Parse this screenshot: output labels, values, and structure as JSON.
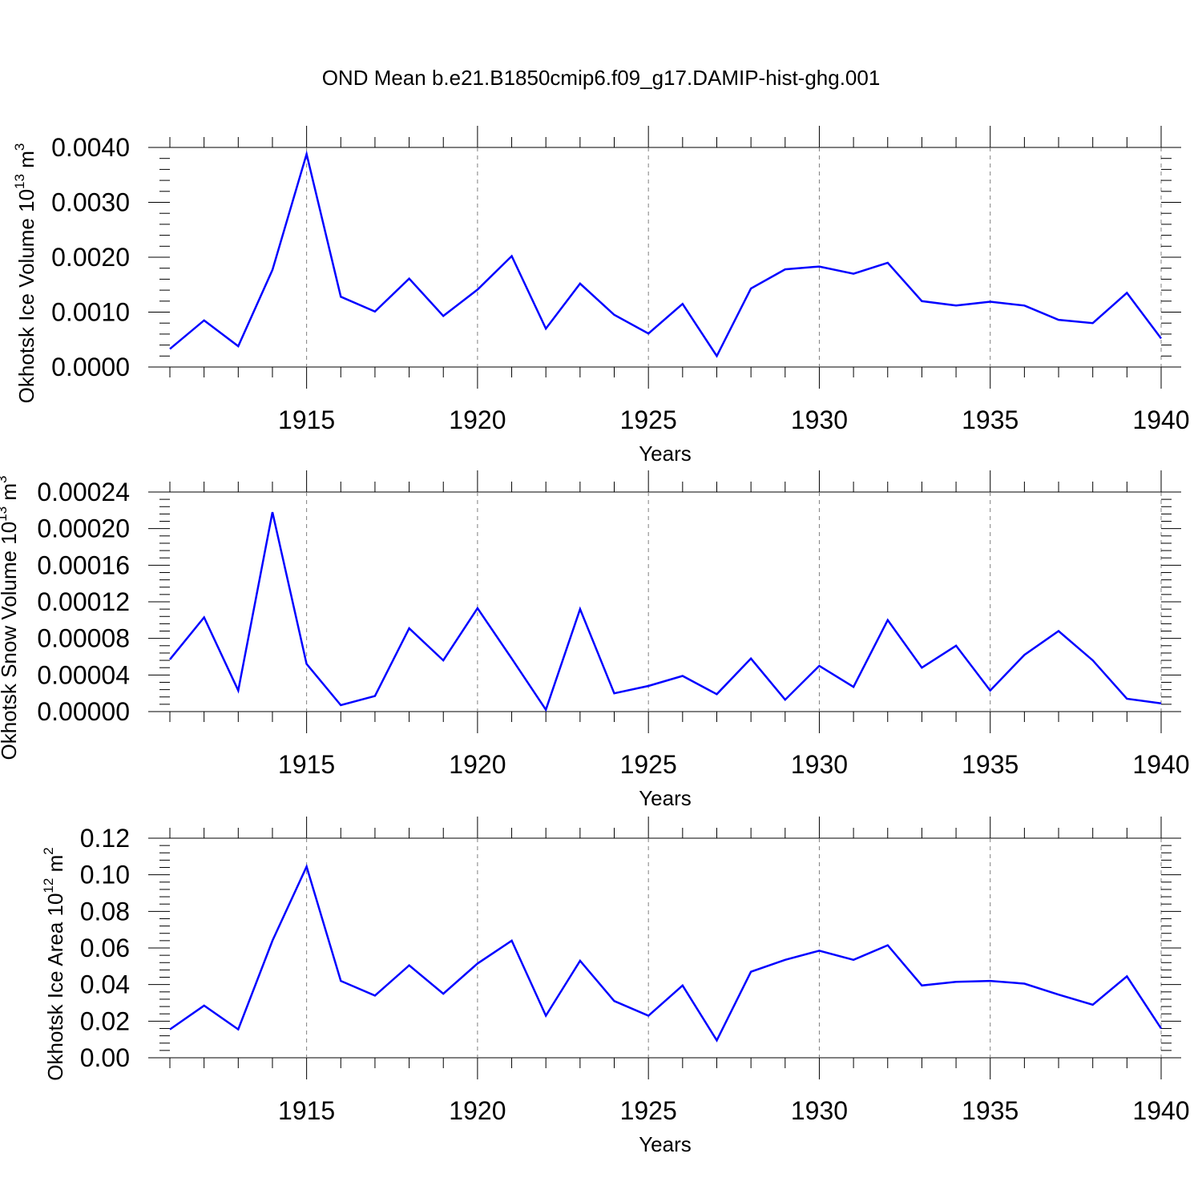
{
  "title": "OND Mean b.e21.B1850cmip6.f09_g17.DAMIP-hist-ghg.001",
  "colors": {
    "line": "#0000ff",
    "axis": "#000000",
    "grid": "#808080"
  },
  "chart_data": [
    {
      "type": "line",
      "ylabel_main": "Okhotsk Ice Volume 10",
      "ylabel_exp": "13",
      "ylabel_unit": "m",
      "ylabel_unit_exp": "3",
      "xlabel": "Years",
      "xlim": [
        1911,
        1940
      ],
      "ylim": [
        0,
        0.004
      ],
      "yticks": [
        "0.0000",
        "0.0010",
        "0.0020",
        "0.0030",
        "0.0040"
      ],
      "ytick_values": [
        0,
        0.001,
        0.002,
        0.003,
        0.004
      ],
      "xticks": [
        "1915",
        "1920",
        "1925",
        "1930",
        "1935",
        "1940"
      ],
      "xtick_values": [
        1915,
        1920,
        1925,
        1930,
        1935,
        1940
      ],
      "x": [
        1911,
        1912,
        1913,
        1914,
        1915,
        1916,
        1917,
        1918,
        1919,
        1920,
        1921,
        1922,
        1923,
        1924,
        1925,
        1926,
        1927,
        1928,
        1929,
        1930,
        1931,
        1932,
        1933,
        1934,
        1935,
        1936,
        1937,
        1938,
        1939,
        1940
      ],
      "values": [
        0.00033,
        0.00085,
        0.00038,
        0.00177,
        0.00388,
        0.00128,
        0.00101,
        0.00161,
        0.00093,
        0.00141,
        0.00202,
        0.0007,
        0.00152,
        0.00095,
        0.00061,
        0.00115,
        0.0002,
        0.00143,
        0.00178,
        0.00183,
        0.0017,
        0.0019,
        0.0012,
        0.00112,
        0.00119,
        0.00112,
        0.00086,
        0.0008,
        0.00135,
        0.00052
      ]
    },
    {
      "type": "line",
      "ylabel_main": "Okhotsk Snow Volume 10",
      "ylabel_exp": "13",
      "ylabel_unit": "m",
      "ylabel_unit_exp": "3",
      "xlabel": "Years",
      "xlim": [
        1911,
        1940
      ],
      "ylim": [
        0,
        0.00024
      ],
      "yticks": [
        "0.00000",
        "0.00004",
        "0.00008",
        "0.00012",
        "0.00016",
        "0.00020",
        "0.00024"
      ],
      "ytick_values": [
        0,
        4e-05,
        8e-05,
        0.00012,
        0.00016,
        0.0002,
        0.00024
      ],
      "xticks": [
        "1915",
        "1920",
        "1925",
        "1930",
        "1935",
        "1940"
      ],
      "xtick_values": [
        1915,
        1920,
        1925,
        1930,
        1935,
        1940
      ],
      "x": [
        1911,
        1912,
        1913,
        1914,
        1915,
        1916,
        1917,
        1918,
        1919,
        1920,
        1921,
        1922,
        1923,
        1924,
        1925,
        1926,
        1927,
        1928,
        1929,
        1930,
        1931,
        1932,
        1933,
        1934,
        1935,
        1936,
        1937,
        1938,
        1939,
        1940
      ],
      "values": [
        5.7e-05,
        0.000103,
        2.3e-05,
        0.000218,
        5.2e-05,
        7e-06,
        1.7e-05,
        9.1e-05,
        5.6e-05,
        0.000113,
        5.8e-05,
        2e-06,
        0.000112,
        2e-05,
        2.8e-05,
        3.9e-05,
        1.9e-05,
        5.8e-05,
        1.3e-05,
        5e-05,
        2.7e-05,
        0.0001,
        4.8e-05,
        7.2e-05,
        2.3e-05,
        6.2e-05,
        8.8e-05,
        5.6e-05,
        1.4e-05,
        9e-06
      ]
    },
    {
      "type": "line",
      "ylabel_main": "Okhotsk Ice Area 10",
      "ylabel_exp": "12",
      "ylabel_unit": "m",
      "ylabel_unit_exp": "2",
      "xlabel": "Years",
      "xlim": [
        1911,
        1940
      ],
      "ylim": [
        0,
        0.12
      ],
      "yticks": [
        "0.00",
        "0.02",
        "0.04",
        "0.06",
        "0.08",
        "0.10",
        "0.12"
      ],
      "ytick_values": [
        0,
        0.02,
        0.04,
        0.06,
        0.08,
        0.1,
        0.12
      ],
      "xticks": [
        "1915",
        "1920",
        "1925",
        "1930",
        "1935",
        "1940"
      ],
      "xtick_values": [
        1915,
        1920,
        1925,
        1930,
        1935,
        1940
      ],
      "x": [
        1911,
        1912,
        1913,
        1914,
        1915,
        1916,
        1917,
        1918,
        1919,
        1920,
        1921,
        1922,
        1923,
        1924,
        1925,
        1926,
        1927,
        1928,
        1929,
        1930,
        1931,
        1932,
        1933,
        1934,
        1935,
        1936,
        1937,
        1938,
        1939,
        1940
      ],
      "values": [
        0.0155,
        0.0285,
        0.0155,
        0.064,
        0.1045,
        0.042,
        0.034,
        0.0505,
        0.035,
        0.0515,
        0.064,
        0.023,
        0.053,
        0.031,
        0.023,
        0.0395,
        0.0095,
        0.047,
        0.0535,
        0.0585,
        0.0535,
        0.0615,
        0.0395,
        0.0415,
        0.042,
        0.0405,
        0.0345,
        0.029,
        0.0445,
        0.016
      ]
    }
  ]
}
